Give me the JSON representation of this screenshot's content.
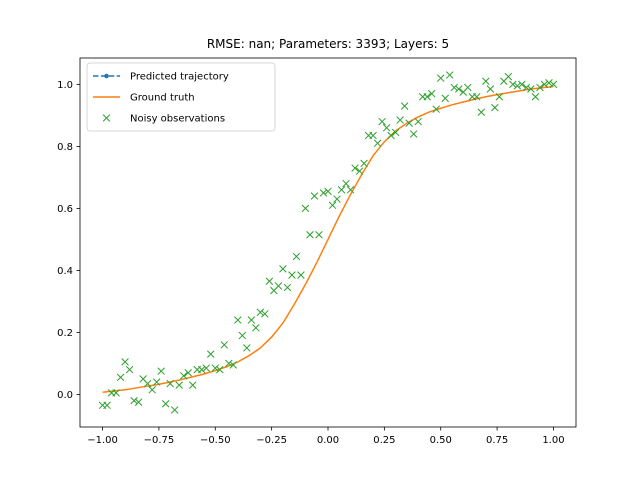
{
  "chart_data": {
    "type": "line",
    "title": "RMSE: nan; Parameters: 3393; Layers: 5",
    "xlabel": "",
    "ylabel": "",
    "xlim": [
      -1.1,
      1.1
    ],
    "ylim": [
      -0.105,
      1.085
    ],
    "xticks": [
      -1.0,
      -0.75,
      -0.5,
      -0.25,
      0.0,
      0.25,
      0.5,
      0.75,
      1.0
    ],
    "xtick_labels": [
      "−1.00",
      "−0.75",
      "−0.50",
      "−0.25",
      "0.00",
      "0.25",
      "0.50",
      "0.75",
      "1.00"
    ],
    "yticks": [
      0.0,
      0.2,
      0.4,
      0.6,
      0.8,
      1.0
    ],
    "ytick_labels": [
      "0.0",
      "0.2",
      "0.4",
      "0.6",
      "0.8",
      "1.0"
    ],
    "grid": false,
    "legend": {
      "position": "upper-left",
      "entries": [
        "Predicted trajectory",
        "Ground truth",
        "Noisy observations"
      ]
    },
    "series": [
      {
        "name": "Predicted trajectory",
        "kind": "line-dashed-marker",
        "color": "#1f77b4",
        "x": [],
        "y": []
      },
      {
        "name": "Ground truth",
        "kind": "line",
        "color": "#ff7f0e",
        "x": [
          -1.0,
          -0.95,
          -0.9,
          -0.85,
          -0.8,
          -0.75,
          -0.7,
          -0.65,
          -0.6,
          -0.55,
          -0.5,
          -0.45,
          -0.4,
          -0.35,
          -0.3,
          -0.25,
          -0.2,
          -0.15,
          -0.1,
          -0.05,
          0.0,
          0.05,
          0.1,
          0.15,
          0.2,
          0.25,
          0.3,
          0.35,
          0.4,
          0.45,
          0.5,
          0.55,
          0.6,
          0.65,
          0.7,
          0.75,
          0.8,
          0.85,
          0.9,
          0.95,
          1.0
        ],
        "y": [
          0.007,
          0.011,
          0.015,
          0.021,
          0.027,
          0.033,
          0.04,
          0.048,
          0.057,
          0.066,
          0.077,
          0.089,
          0.105,
          0.125,
          0.15,
          0.185,
          0.23,
          0.29,
          0.355,
          0.425,
          0.5,
          0.575,
          0.645,
          0.71,
          0.77,
          0.815,
          0.85,
          0.875,
          0.895,
          0.911,
          0.923,
          0.934,
          0.943,
          0.952,
          0.96,
          0.967,
          0.973,
          0.979,
          0.985,
          0.989,
          0.993
        ]
      },
      {
        "name": "Noisy observations",
        "kind": "scatter-x",
        "color": "#2ca02c",
        "x": [
          -1.0,
          -0.98,
          -0.96,
          -0.94,
          -0.92,
          -0.9,
          -0.88,
          -0.86,
          -0.84,
          -0.82,
          -0.8,
          -0.78,
          -0.76,
          -0.74,
          -0.72,
          -0.7,
          -0.68,
          -0.66,
          -0.64,
          -0.62,
          -0.6,
          -0.58,
          -0.56,
          -0.54,
          -0.52,
          -0.5,
          -0.48,
          -0.46,
          -0.44,
          -0.42,
          -0.4,
          -0.38,
          -0.36,
          -0.34,
          -0.32,
          -0.3,
          -0.28,
          -0.26,
          -0.24,
          -0.22,
          -0.2,
          -0.18,
          -0.16,
          -0.14,
          -0.12,
          -0.1,
          -0.08,
          -0.06,
          -0.04,
          -0.02,
          0.0,
          0.02,
          0.04,
          0.06,
          0.08,
          0.1,
          0.12,
          0.14,
          0.16,
          0.18,
          0.2,
          0.22,
          0.24,
          0.26,
          0.28,
          0.3,
          0.32,
          0.34,
          0.36,
          0.38,
          0.4,
          0.42,
          0.44,
          0.46,
          0.48,
          0.5,
          0.52,
          0.54,
          0.56,
          0.58,
          0.6,
          0.62,
          0.64,
          0.66,
          0.68,
          0.7,
          0.72,
          0.74,
          0.76,
          0.78,
          0.8,
          0.82,
          0.84,
          0.86,
          0.88,
          0.9,
          0.92,
          0.94,
          0.96,
          0.98,
          1.0
        ],
        "y": [
          -0.035,
          -0.035,
          0.005,
          0.005,
          0.055,
          0.105,
          0.08,
          -0.02,
          -0.025,
          0.05,
          0.035,
          0.015,
          0.04,
          0.075,
          -0.03,
          0.035,
          -0.05,
          0.03,
          0.06,
          0.07,
          0.03,
          0.08,
          0.08,
          0.085,
          0.13,
          0.085,
          0.08,
          0.16,
          0.1,
          0.095,
          0.24,
          0.19,
          0.15,
          0.24,
          0.215,
          0.265,
          0.26,
          0.365,
          0.335,
          0.35,
          0.405,
          0.345,
          0.385,
          0.445,
          0.385,
          0.6,
          0.515,
          0.64,
          0.515,
          0.65,
          0.655,
          0.61,
          0.63,
          0.66,
          0.68,
          0.66,
          0.73,
          0.72,
          0.745,
          0.835,
          0.835,
          0.81,
          0.88,
          0.86,
          0.835,
          0.845,
          0.885,
          0.93,
          0.875,
          0.84,
          0.88,
          0.96,
          0.96,
          0.97,
          0.92,
          1.02,
          0.955,
          1.03,
          0.99,
          0.985,
          0.975,
          0.99,
          0.96,
          0.96,
          0.91,
          1.01,
          0.985,
          0.925,
          0.96,
          1.01,
          1.025,
          1.0,
          0.995,
          1.0,
          0.99,
          0.985,
          0.96,
          0.99,
          1.0,
          1.005,
          1.0
        ]
      }
    ]
  }
}
